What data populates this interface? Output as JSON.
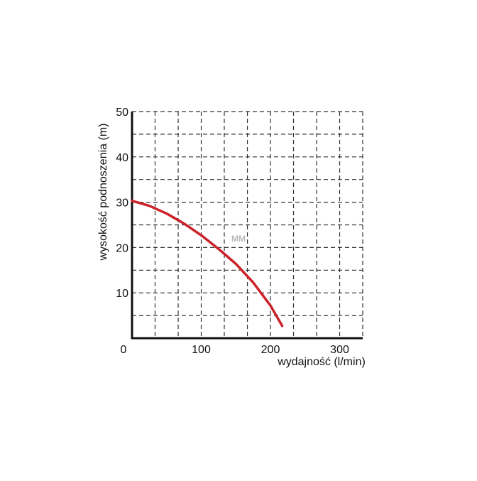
{
  "chart_data": {
    "type": "line",
    "x_label": "wydajność (l/min)",
    "y_label": "wysokość podnoszenia (m)",
    "annotation": "MM",
    "x": [
      0,
      25,
      50,
      75,
      100,
      125,
      150,
      175,
      200,
      217
    ],
    "series": [
      {
        "color": "#cc2229",
        "values": [
          30.3,
          29.2,
          27.5,
          25.3,
          22.7,
          19.7,
          16.4,
          12.3,
          7.2,
          2.7
        ]
      }
    ],
    "xlim": [
      0,
      333.3
    ],
    "ylim": [
      0,
      50
    ],
    "xticks": [
      0,
      100,
      200,
      300
    ],
    "yticks": [
      10,
      20,
      30,
      40,
      50
    ],
    "x_minor_grid": [
      33.3,
      66.7,
      133.3,
      166.7,
      233.3,
      266.7,
      333.3
    ],
    "y_minor_grid": [
      5,
      15,
      25,
      35,
      45
    ],
    "grid": true
  }
}
